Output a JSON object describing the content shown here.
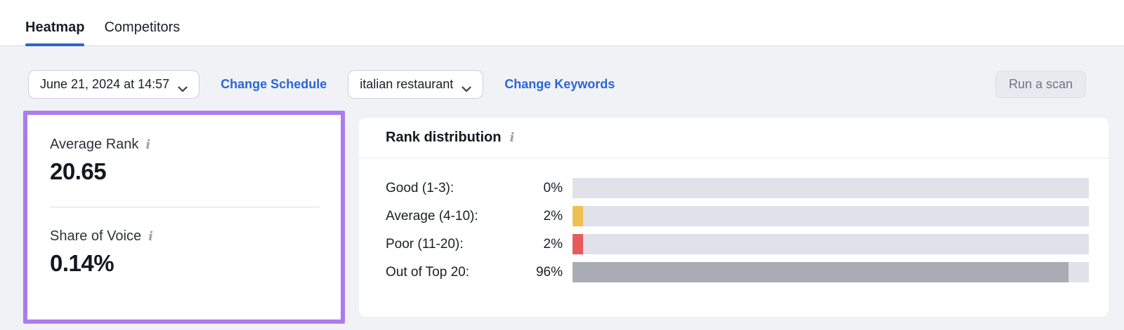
{
  "tabs": [
    {
      "label": "Heatmap",
      "active": true
    },
    {
      "label": "Competitors",
      "active": false
    }
  ],
  "toolbar": {
    "schedule_select": {
      "value": "June 21, 2024 at 14:57"
    },
    "change_schedule_link": "Change Schedule",
    "keyword_select": {
      "value": "italian restaurant"
    },
    "change_keywords_link": "Change Keywords",
    "run_scan_button": "Run a scan"
  },
  "metrics_card": {
    "highlight_color": "#AB7DEC",
    "average_rank": {
      "label": "Average Rank",
      "info_icon": "i",
      "value": "20.65"
    },
    "share_of_voice": {
      "label": "Share of Voice",
      "info_icon": "i",
      "value": "0.14%"
    }
  },
  "rank_distribution": {
    "title": "Rank distribution",
    "info_icon": "i",
    "track_color": "#E1E2E9",
    "chart_data": {
      "type": "bar",
      "categories": [
        "Good (1-3):",
        "Average (4-10):",
        "Poor (11-20):",
        "Out of Top 20:"
      ],
      "values": [
        0,
        2,
        2,
        96
      ],
      "value_labels": [
        "0%",
        "2%",
        "2%",
        "96%"
      ],
      "xlim": [
        0,
        100
      ]
    },
    "rows": [
      {
        "label": "Good (1-3):",
        "percent_label": "0%",
        "percent": 0,
        "color": "#A9ABB5"
      },
      {
        "label": "Average (4-10):",
        "percent_label": "2%",
        "percent": 2,
        "color": "#F0C052"
      },
      {
        "label": "Poor (11-20):",
        "percent_label": "2%",
        "percent": 2,
        "color": "#E85B5B"
      },
      {
        "label": "Out of Top 20:",
        "percent_label": "96%",
        "percent": 96,
        "color": "#A9ABB5"
      }
    ]
  },
  "colors": {
    "accent_blue": "#2A65D2",
    "link_blue": "#2B66D4",
    "page_background": "#F1F2F6"
  }
}
